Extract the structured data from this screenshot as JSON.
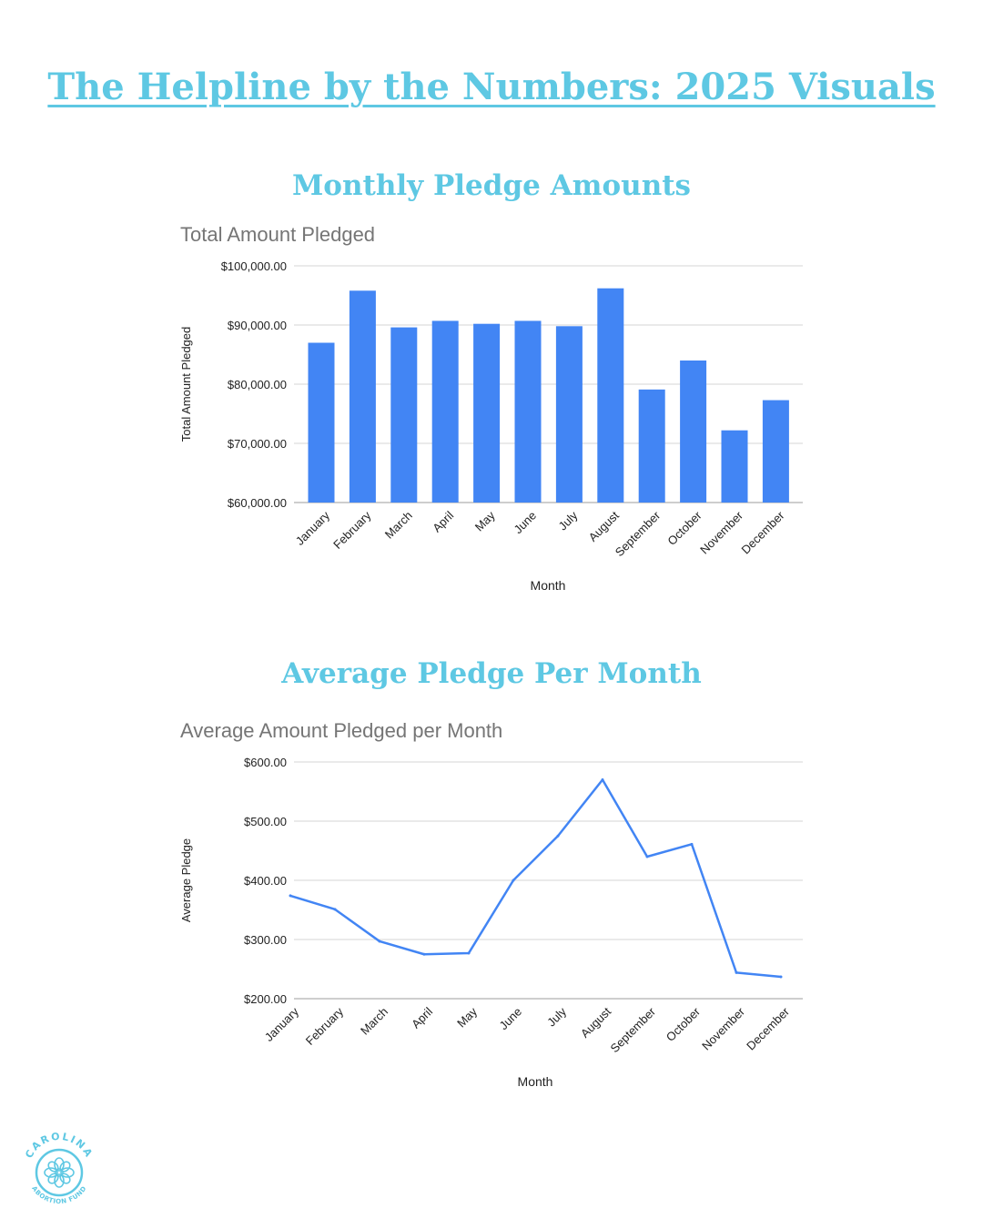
{
  "page": {
    "title": "The Helpline by the Numbers: 2025 Visuals",
    "section1_title": "Monthly Pledge Amounts",
    "section2_title": "Average Pledge Per Month"
  },
  "logo": {
    "text_top": "CAROLINA",
    "text_bottom": "ABORTION FUND",
    "icon": "flower-icon",
    "color": "#5ec8e3"
  },
  "chart_data": [
    {
      "type": "bar",
      "title": "Total Amount Pledged",
      "xlabel": "Month",
      "ylabel": "Total Amount Pledged",
      "categories": [
        "January",
        "February",
        "March",
        "April",
        "May",
        "June",
        "July",
        "August",
        "September",
        "October",
        "November",
        "December"
      ],
      "values": [
        87000,
        95800,
        89600,
        90700,
        90200,
        90700,
        89800,
        96200,
        79100,
        84000,
        72200,
        77300
      ],
      "ylim": [
        60000,
        100000
      ],
      "yticks": [
        "$60,000.00",
        "$70,000.00",
        "$80,000.00",
        "$90,000.00",
        "$100,000.00"
      ],
      "color": "#4285f4",
      "grid": true,
      "legend": "none"
    },
    {
      "type": "line",
      "title": "Average Amount Pledged per Month",
      "xlabel": "Month",
      "ylabel": "Average Pledge",
      "categories": [
        "January",
        "February",
        "March",
        "April",
        "May",
        "June",
        "July",
        "August",
        "September",
        "October",
        "November",
        "December"
      ],
      "values": [
        374,
        351,
        297,
        275,
        277,
        400,
        475,
        570,
        440,
        461,
        244,
        237
      ],
      "ylim": [
        200,
        600
      ],
      "yticks": [
        "$200.00",
        "$300.00",
        "$400.00",
        "$500.00",
        "$600.00"
      ],
      "color": "#4285f4",
      "grid": true,
      "legend": "none"
    }
  ]
}
